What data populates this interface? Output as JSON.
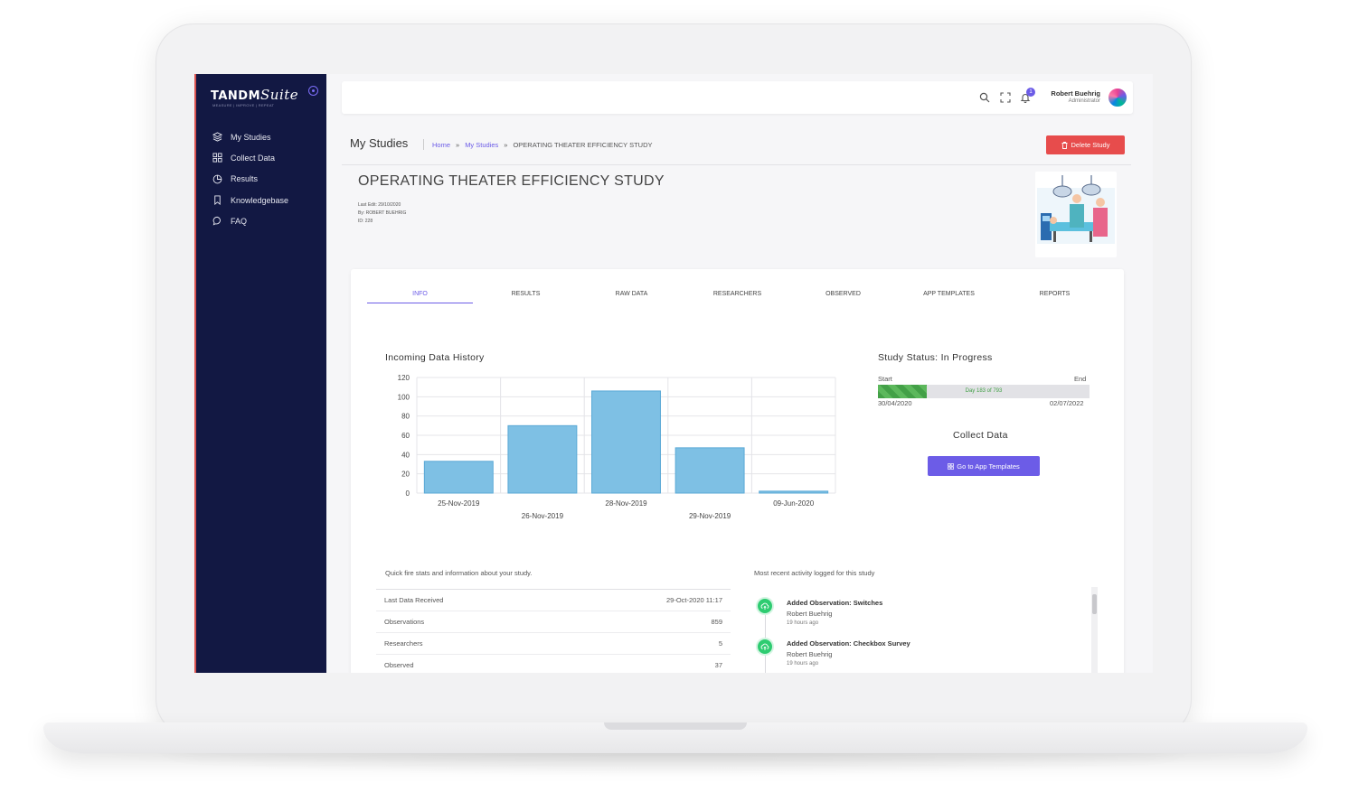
{
  "app": {
    "logo_text": "TANDM",
    "logo_script": "Suite",
    "logo_sub": "MEASURE | IMPROVE | REPEAT"
  },
  "sidebar": {
    "items": [
      {
        "label": "My Studies",
        "icon": "layers-icon"
      },
      {
        "label": "Collect Data",
        "icon": "grid-icon"
      },
      {
        "label": "Results",
        "icon": "pie-chart-icon"
      },
      {
        "label": "Knowledgebase",
        "icon": "bookmark-icon"
      },
      {
        "label": "FAQ",
        "icon": "chat-bubble-icon"
      }
    ]
  },
  "topbar": {
    "notification_count": "1",
    "user_name": "Robert Buehrig",
    "user_role": "Administrator"
  },
  "header": {
    "page_title": "My Studies",
    "breadcrumb": {
      "home": "Home",
      "sep": "»",
      "section": "My Studies",
      "current": "OPERATING THEATER EFFICIENCY STUDY"
    },
    "delete_label": "Delete Study"
  },
  "study": {
    "title": "OPERATING THEATER EFFICIENCY STUDY",
    "last_edit": "Last Edit: 29/10/2020",
    "by": "By: ROBERT BUEHRIG",
    "id": "ID: 228"
  },
  "tabs": [
    "INFO",
    "RESULTS",
    "RAW DATA",
    "RESEARCHERS",
    "OBSERVED",
    "APP TEMPLATES",
    "REPORTS"
  ],
  "chart_heading": "Incoming Data History",
  "chart_data": {
    "type": "bar",
    "title": "Incoming Data History",
    "categories": [
      "25-Nov-2019",
      "26-Nov-2019",
      "28-Nov-2019",
      "29-Nov-2019",
      "09-Jun-2020"
    ],
    "values": [
      33,
      70,
      106,
      47,
      2
    ],
    "yticks": [
      0,
      20,
      40,
      60,
      80,
      100,
      120
    ],
    "ylim": [
      0,
      120
    ],
    "grid": true,
    "bar_color": "#7ec0e4"
  },
  "status": {
    "heading": "Study Status: In Progress",
    "start_label": "Start",
    "end_label": "End",
    "progress_label": "Day 183 of 793",
    "progress": 0.231,
    "start_date": "30/04/2020",
    "end_date": "02/07/2022"
  },
  "collect": {
    "heading": "Collect Data",
    "button_label": "Go to App Templates"
  },
  "stats": {
    "caption": "Quick fire stats and information about your study.",
    "rows": [
      {
        "label": "Last Data Received",
        "value": "29-Oct-2020 11:17"
      },
      {
        "label": "Observations",
        "value": "859"
      },
      {
        "label": "Researchers",
        "value": "5"
      },
      {
        "label": "Observed",
        "value": "37"
      }
    ]
  },
  "activity": {
    "caption": "Most recent activity logged for this study",
    "items": [
      {
        "title": "Added Observation: Switches",
        "user": "Robert Buehrig",
        "time": "19 hours ago"
      },
      {
        "title": "Added Observation: Checkbox Survey",
        "user": "Robert Buehrig",
        "time": "19 hours ago"
      }
    ]
  },
  "colors": {
    "sidebar_bg": "#121843",
    "accent": "#6c5ce7",
    "danger": "#e74c4c",
    "success": "#43a047"
  }
}
